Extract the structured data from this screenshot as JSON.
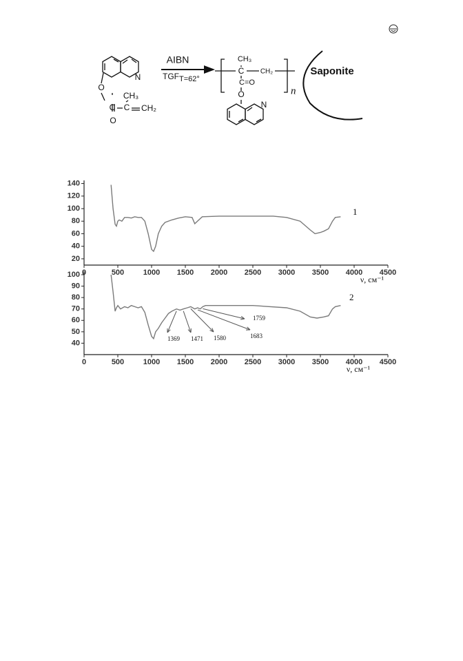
{
  "scheme": {
    "reagent": "AIBN",
    "solvent": "TGF",
    "temperature": "T=62°",
    "support": "Saponite",
    "repeat": "n",
    "monomer_atoms": [
      "N",
      "O",
      "CH₃",
      "C",
      "C",
      "CH₂",
      "O"
    ],
    "polymer_atoms": [
      "CH₃",
      "C",
      "CH₂",
      "C=O",
      "O",
      "N"
    ]
  },
  "chart_data": [
    {
      "type": "line",
      "x_label": "ν, см⁻¹",
      "xlim": [
        0,
        4500
      ],
      "xticks": [
        0,
        500,
        1000,
        1500,
        2000,
        2500,
        3000,
        3500,
        4000,
        4500
      ],
      "ylim": [
        10,
        145
      ],
      "yticks": [
        20,
        40,
        60,
        80,
        100,
        120,
        140
      ],
      "x": [
        400,
        430,
        460,
        480,
        500,
        520,
        560,
        600,
        650,
        700,
        750,
        800,
        850,
        900,
        950,
        1000,
        1030,
        1060,
        1100,
        1150,
        1200,
        1300,
        1400,
        1500,
        1600,
        1640,
        1680,
        1750,
        2000,
        2500,
        2800,
        3000,
        3200,
        3350,
        3420,
        3500,
        3550,
        3620,
        3680,
        3720,
        3800
      ],
      "series": [
        {
          "name": "1",
          "color": "#7a7a7a",
          "values": [
            138,
            100,
            75,
            72,
            80,
            82,
            80,
            86,
            86,
            85,
            87,
            86,
            86,
            80,
            60,
            35,
            32,
            40,
            60,
            72,
            78,
            82,
            85,
            87,
            86,
            76,
            80,
            87,
            88,
            88,
            88,
            86,
            80,
            66,
            60,
            62,
            64,
            68,
            80,
            86,
            87
          ]
        }
      ]
    },
    {
      "type": "line",
      "x_label": "ν, см⁻¹",
      "xlim": [
        0,
        4500
      ],
      "xticks": [
        0,
        500,
        1000,
        1500,
        2000,
        2500,
        3000,
        3500,
        4000,
        4500
      ],
      "ylim": [
        30,
        103
      ],
      "yticks": [
        40,
        50,
        60,
        70,
        80,
        90,
        100
      ],
      "x": [
        400,
        430,
        460,
        480,
        500,
        540,
        600,
        650,
        700,
        750,
        800,
        850,
        900,
        950,
        1000,
        1030,
        1060,
        1100,
        1150,
        1200,
        1250,
        1300,
        1369,
        1420,
        1471,
        1530,
        1580,
        1640,
        1683,
        1720,
        1759,
        1800,
        2500,
        3000,
        3200,
        3350,
        3450,
        3550,
        3620,
        3680,
        3720,
        3800
      ],
      "series": [
        {
          "name": "2",
          "color": "#7a7a7a",
          "values": [
            100,
            85,
            68,
            71,
            73,
            70,
            72,
            71,
            73,
            72,
            71,
            72,
            67,
            56,
            46,
            44,
            50,
            53,
            58,
            62,
            66,
            68,
            70,
            69,
            70,
            71,
            72,
            70,
            71,
            70,
            72,
            73,
            73,
            71,
            68,
            63,
            62,
            63,
            64,
            70,
            72,
            73
          ]
        }
      ],
      "peak_labels": [
        1369,
        1471,
        1580,
        1683,
        1759
      ]
    }
  ]
}
